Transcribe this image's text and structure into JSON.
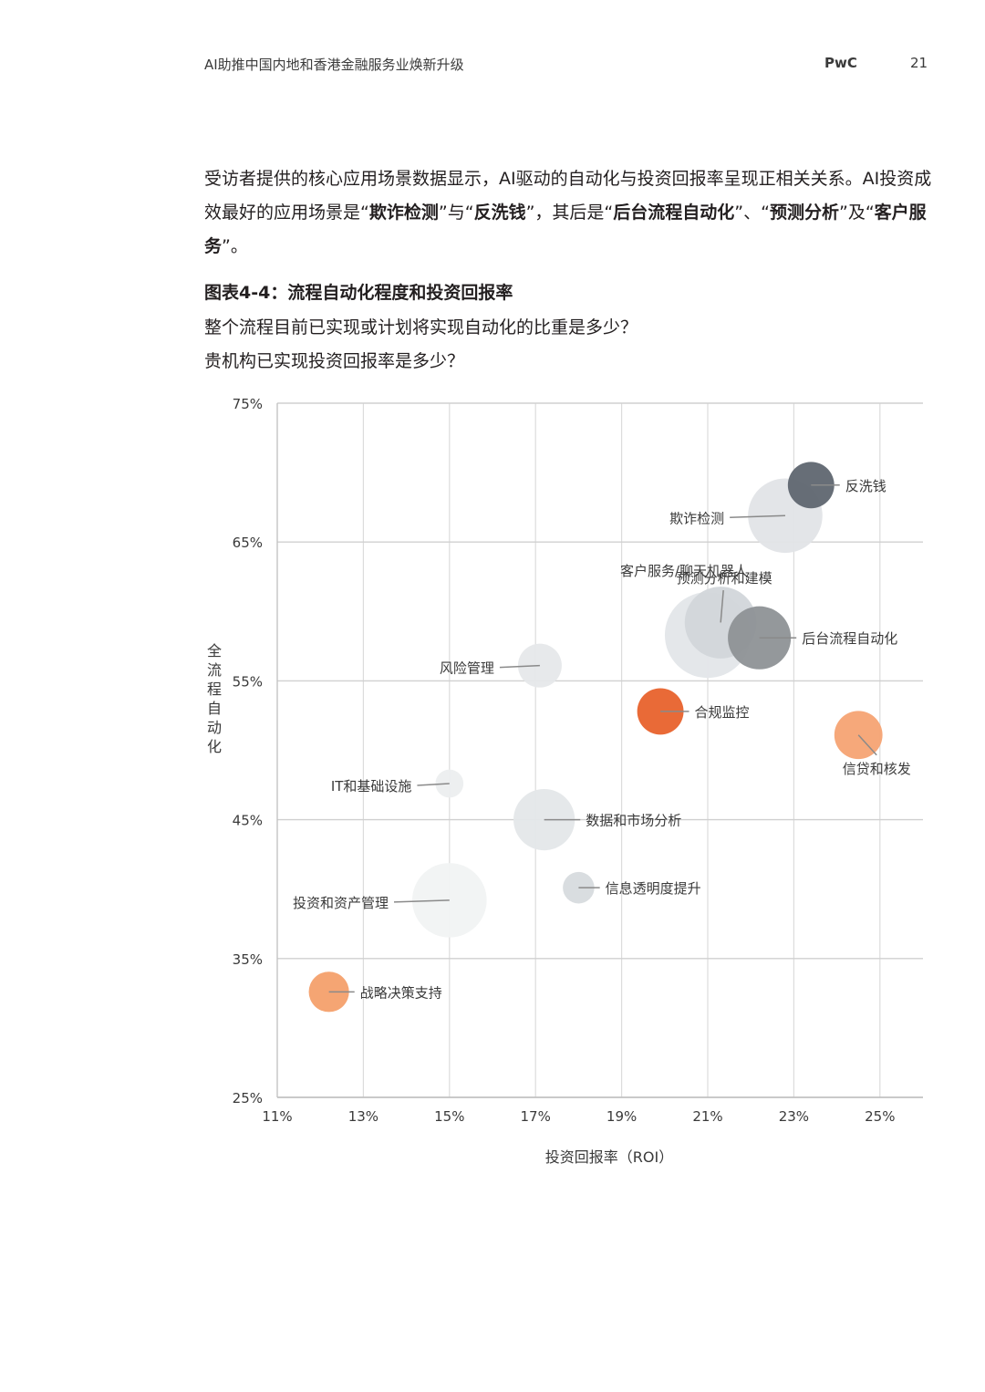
{
  "header": {
    "title": "AI助推中国内地和香港金融服务业焕新升级",
    "logo": "PwC",
    "page_number": "21"
  },
  "intro": {
    "t1": "受访者提供的核心应用场景数据显示，AI驱动的自动化与投资回报率呈现正相关关系。AI投资成效最好的应用场景是“",
    "b1": "欺诈检测",
    "t2": "”与“",
    "b2": "反洗钱",
    "t3": "”，其后是“",
    "b3": "后台流程自动化",
    "t4": "”、“",
    "b4": "预测分析",
    "t5": "”及“",
    "b5": "客户服务",
    "t6": "”。"
  },
  "figure": {
    "title": "图表4-4：流程自动化程度和投资回报率",
    "question1": "整个流程目前已实现或计划将实现自动化的比重是多少？",
    "question2": "贵机构已实现投资回报率是多少？"
  },
  "chart_data": {
    "type": "scatter",
    "xlabel": "投资回报率（ROI）",
    "ylabel": "全流程自动化",
    "xlim": [
      11,
      26
    ],
    "ylim": [
      25,
      75
    ],
    "x_ticks": [
      11,
      13,
      15,
      17,
      19,
      21,
      23,
      25
    ],
    "x_tick_labels": [
      "11%",
      "13%",
      "15%",
      "17%",
      "19%",
      "21%",
      "23%",
      "25%"
    ],
    "y_ticks": [
      25,
      35,
      45,
      55,
      65,
      75
    ],
    "y_tick_labels": [
      "25%",
      "35%",
      "45%",
      "55%",
      "65%",
      "75%"
    ],
    "grid": true,
    "points": [
      {
        "label": "反洗钱",
        "x": 23.4,
        "y": 69.1,
        "size": 0.53,
        "color": "#5f6670",
        "label_side": "right"
      },
      {
        "label": "欺诈检测",
        "x": 22.8,
        "y": 66.9,
        "size": 0.85,
        "color": "#e1e4e7",
        "label_side": "left"
      },
      {
        "label": "预测分析和建模",
        "x": 21.3,
        "y": 59.2,
        "size": 0.82,
        "color": "#d2d6da",
        "label_side": "top"
      },
      {
        "label": "客户服务/聊天机器人",
        "x": 21.0,
        "y": 58.3,
        "size": 0.98,
        "color": "#e3e6e9",
        "label_side": "top-left"
      },
      {
        "label": "后台流程自动化",
        "x": 22.2,
        "y": 58.1,
        "size": 0.72,
        "color": "#8e9296",
        "label_side": "right"
      },
      {
        "label": "风险管理",
        "x": 17.1,
        "y": 56.1,
        "size": 0.5,
        "color": "#e6e8ea",
        "label_side": "left"
      },
      {
        "label": "合规监控",
        "x": 19.9,
        "y": 52.8,
        "size": 0.53,
        "color": "#e8622c",
        "label_side": "right"
      },
      {
        "label": "信贷和核发",
        "x": 24.5,
        "y": 51.1,
        "size": 0.55,
        "color": "#f5a373",
        "label_side": "bottom-right"
      },
      {
        "label": "IT和基础设施",
        "x": 15.0,
        "y": 47.6,
        "size": 0.32,
        "color": "#eceeef",
        "label_side": "left"
      },
      {
        "label": "数据和市场分析",
        "x": 17.2,
        "y": 45.0,
        "size": 0.7,
        "color": "#e4e7e9",
        "label_side": "right"
      },
      {
        "label": "信息透明度提升",
        "x": 18.0,
        "y": 40.1,
        "size": 0.36,
        "color": "#d7dbde",
        "label_side": "right"
      },
      {
        "label": "投资和资产管理",
        "x": 15.0,
        "y": 39.2,
        "size": 0.85,
        "color": "#f1f3f3",
        "label_side": "left"
      },
      {
        "label": "战略决策支持",
        "x": 12.2,
        "y": 32.6,
        "size": 0.46,
        "color": "#f4a06c",
        "label_side": "right"
      }
    ]
  }
}
